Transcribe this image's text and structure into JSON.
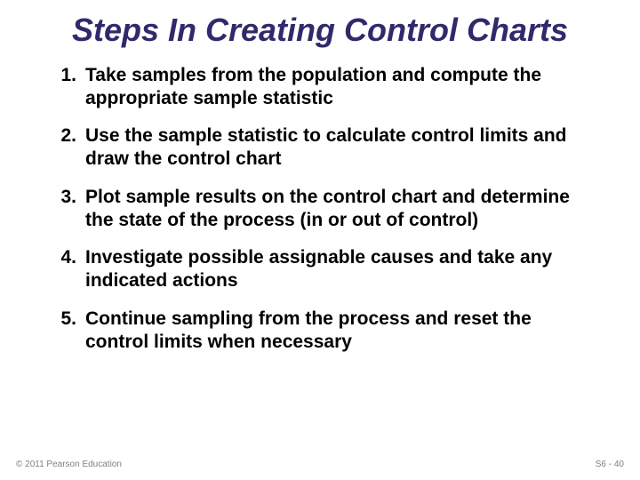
{
  "title": {
    "text": "Steps In Creating Control Charts",
    "color": "#2f2a6b",
    "fontsize": 36
  },
  "list": {
    "color": "#000000",
    "fontsize": 21,
    "items": [
      {
        "num": "1.",
        "text": "Take samples from the population and compute the appropriate sample statistic"
      },
      {
        "num": "2.",
        "text": "Use the sample statistic to calculate control limits and draw the control chart"
      },
      {
        "num": "3.",
        "text": "Plot sample results on the control chart and determine the state of the process (in or out of control)"
      },
      {
        "num": "4.",
        "text": "Investigate possible assignable causes and take any indicated actions"
      },
      {
        "num": "5.",
        "text": "Continue sampling from the process and reset the control limits when necessary"
      }
    ]
  },
  "footer": {
    "left": "© 2011 Pearson Education",
    "right": "S6 - 40",
    "color": "#808080",
    "fontsize": 10
  },
  "background_color": "#ffffff"
}
